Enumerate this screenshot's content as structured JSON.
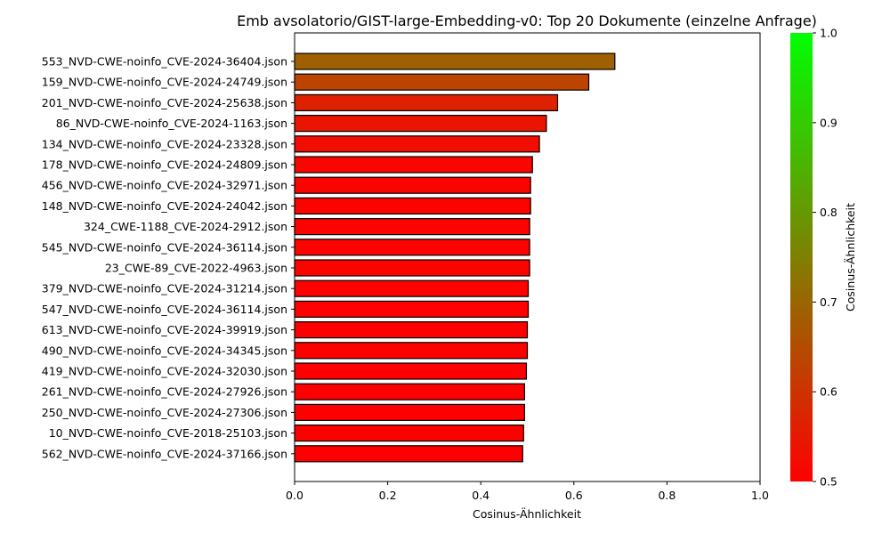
{
  "chart_data": {
    "type": "bar",
    "orientation": "horizontal",
    "title": "Emb avsolatorio/GIST-large-Embedding-v0: Top 20 Dokumente (einzelne Anfrage)",
    "xlabel": "Cosinus-Ähnlichkeit",
    "ylabel": "",
    "xlim": [
      0,
      1
    ],
    "xticks": [
      "0.0",
      "0.2",
      "0.4",
      "0.6",
      "0.8",
      "1.0"
    ],
    "grid": false,
    "categories": [
      "553_NVD-CWE-noinfo_CVE-2024-36404.json",
      "159_NVD-CWE-noinfo_CVE-2024-24749.json",
      "201_NVD-CWE-noinfo_CVE-2024-25638.json",
      "86_NVD-CWE-noinfo_CVE-2024-1163.json",
      "134_NVD-CWE-noinfo_CVE-2024-23328.json",
      "178_NVD-CWE-noinfo_CVE-2024-24809.json",
      "456_NVD-CWE-noinfo_CVE-2024-32971.json",
      "148_NVD-CWE-noinfo_CVE-2024-24042.json",
      "324_CWE-1188_CVE-2024-2912.json",
      "545_NVD-CWE-noinfo_CVE-2024-36114.json",
      "23_CWE-89_CVE-2022-4963.json",
      "379_NVD-CWE-noinfo_CVE-2024-31214.json",
      "547_NVD-CWE-noinfo_CVE-2024-36114.json",
      "613_NVD-CWE-noinfo_CVE-2024-39919.json",
      "490_NVD-CWE-noinfo_CVE-2024-34345.json",
      "419_NVD-CWE-noinfo_CVE-2024-32030.json",
      "261_NVD-CWE-noinfo_CVE-2024-27926.json",
      "250_NVD-CWE-noinfo_CVE-2024-27306.json",
      "10_NVD-CWE-noinfo_CVE-2018-25103.json",
      "562_NVD-CWE-noinfo_CVE-2024-37166.json"
    ],
    "values": [
      0.688,
      0.632,
      0.565,
      0.541,
      0.526,
      0.511,
      0.507,
      0.507,
      0.505,
      0.505,
      0.505,
      0.502,
      0.502,
      0.5,
      0.5,
      0.498,
      0.494,
      0.494,
      0.492,
      0.49
    ],
    "colorbar": {
      "label": "Cosinus-Ähnlichkeit",
      "range": [
        0.5,
        1.0
      ],
      "ticks": [
        "0.5",
        "0.6",
        "0.7",
        "0.8",
        "0.9",
        "1.0"
      ],
      "color_low": "#ff0000",
      "color_high": "#00ff00"
    }
  }
}
